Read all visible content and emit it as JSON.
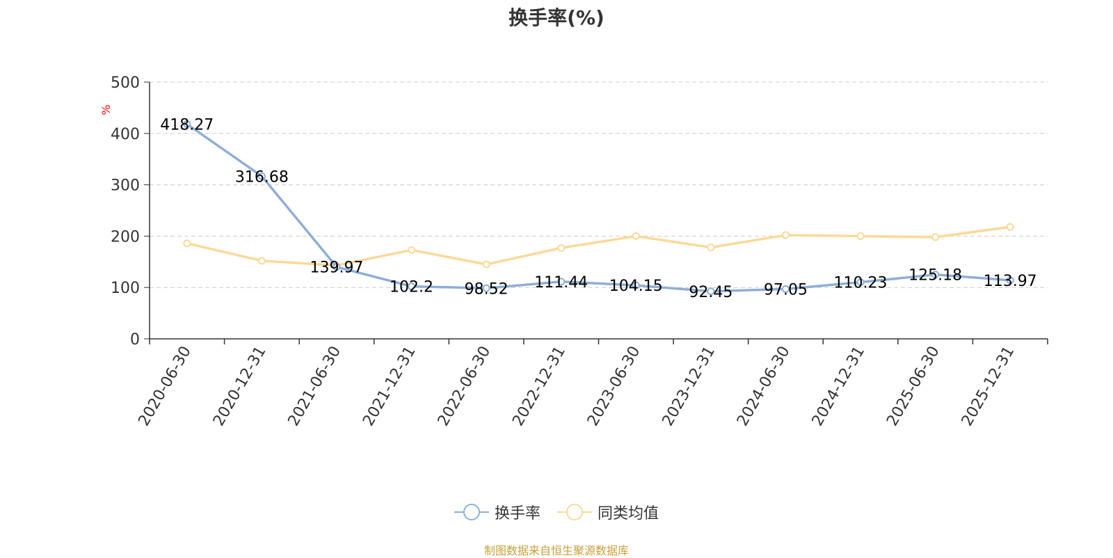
{
  "chart_data": {
    "type": "line",
    "title": "换手率(%)",
    "ylabel": "%",
    "xlabel": "",
    "ylim": [
      0,
      500
    ],
    "yticks": [
      0,
      100,
      200,
      300,
      400,
      500
    ],
    "grid": true,
    "legend_position": "bottom",
    "categories": [
      "2020-06-30",
      "2020-12-31",
      "2021-06-30",
      "2021-12-31",
      "2022-06-30",
      "2022-12-31",
      "2023-06-30",
      "2023-12-31",
      "2024-06-30",
      "2024-12-31",
      "2025-06-30",
      "2025-12-31"
    ],
    "series": [
      {
        "name": "换手率",
        "color": "#8eaed8",
        "values": [
          418.27,
          316.68,
          139.97,
          102.2,
          98.52,
          111.44,
          104.15,
          92.45,
          97.05,
          110.23,
          125.18,
          113.97
        ],
        "labels": [
          "418.27",
          "316.68",
          "139.97",
          "102.2",
          "98.52",
          "111.44",
          "104.15",
          "92.45",
          "97.05",
          "110.23",
          "125.18",
          "113.97"
        ]
      },
      {
        "name": "同类均值",
        "color": "#fcd998",
        "values": [
          186,
          152,
          143,
          173,
          145,
          177,
          200,
          178,
          202,
          200,
          198,
          218
        ]
      }
    ]
  },
  "source_note": "制图数据来自恒生聚源数据库",
  "colors": {
    "axis": "#333333",
    "grid": "#cccccc",
    "ylabel": "#ff0000",
    "source": "#c8a03a"
  }
}
